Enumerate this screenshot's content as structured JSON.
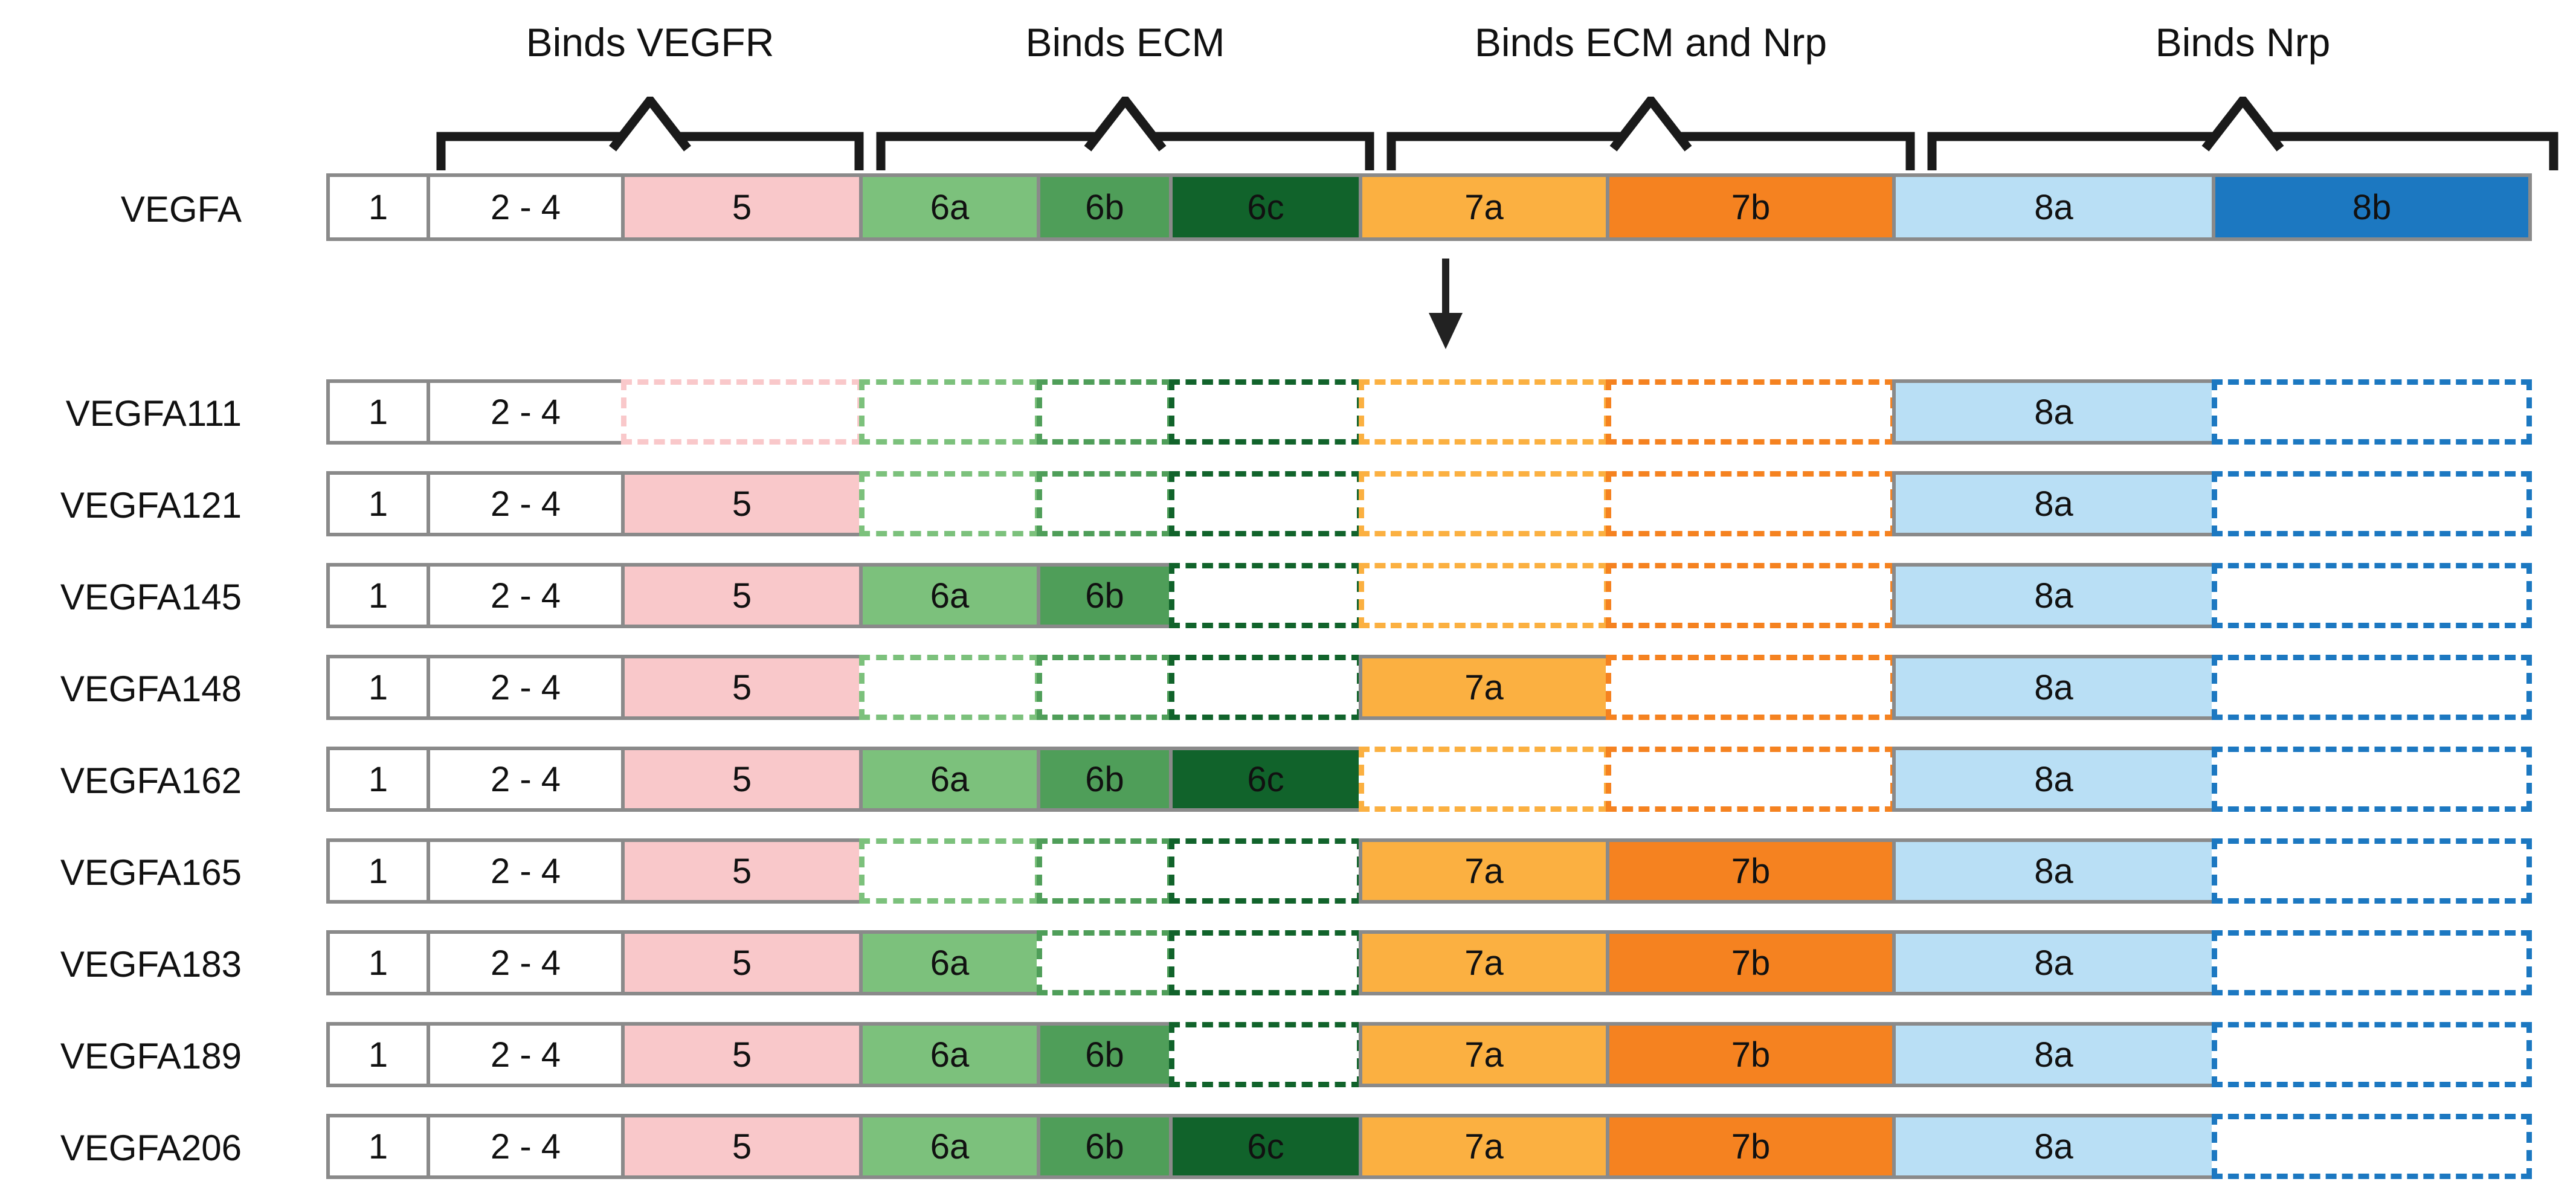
{
  "figure": {
    "description": "VEGFA exon structure and splice isoforms diagram"
  },
  "gene": {
    "label": "VEGFA"
  },
  "groups": [
    {
      "id": "vegfr",
      "label": "Binds VEGFR",
      "start": "e24",
      "end": "e5"
    },
    {
      "id": "ecm",
      "label": "Binds ECM",
      "start": "e6a",
      "end": "e6c"
    },
    {
      "id": "ecm_nrp",
      "label": "Binds ECM and Nrp",
      "start": "e7a",
      "end": "e7b"
    },
    {
      "id": "nrp",
      "label": "Binds Nrp",
      "start": "e8a",
      "end": "e8b"
    }
  ],
  "exons": [
    {
      "id": "e1",
      "label": "1",
      "color": "#ffffff"
    },
    {
      "id": "e24",
      "label": "2 - 4",
      "color": "#ffffff"
    },
    {
      "id": "e5",
      "label": "5",
      "color": "#f9c8ca"
    },
    {
      "id": "e6a",
      "label": "6a",
      "color": "#7cc17c"
    },
    {
      "id": "e6b",
      "label": "6b",
      "color": "#4f9e59"
    },
    {
      "id": "e6c",
      "label": "6c",
      "color": "#11632b"
    },
    {
      "id": "e7a",
      "label": "7a",
      "color": "#fbb041"
    },
    {
      "id": "e7b",
      "label": "7b",
      "color": "#f58220"
    },
    {
      "id": "e8a",
      "label": "8a",
      "color": "#b9dff5"
    },
    {
      "id": "e8b",
      "label": "8b",
      "color": "#1c78c1"
    }
  ],
  "border_color": "#8a8a8a",
  "bracket_color": "#1a1a1a",
  "isoforms": [
    {
      "name": "VEGFA111",
      "present": [
        "e1",
        "e24",
        "e8a"
      ]
    },
    {
      "name": "VEGFA121",
      "present": [
        "e1",
        "e24",
        "e5",
        "e8a"
      ]
    },
    {
      "name": "VEGFA145",
      "present": [
        "e1",
        "e24",
        "e5",
        "e6a",
        "e6b",
        "e8a"
      ]
    },
    {
      "name": "VEGFA148",
      "present": [
        "e1",
        "e24",
        "e5",
        "e7a",
        "e8a"
      ]
    },
    {
      "name": "VEGFA162",
      "present": [
        "e1",
        "e24",
        "e5",
        "e6a",
        "e6b",
        "e6c",
        "e8a"
      ]
    },
    {
      "name": "VEGFA165",
      "present": [
        "e1",
        "e24",
        "e5",
        "e7a",
        "e7b",
        "e8a"
      ]
    },
    {
      "name": "VEGFA183",
      "present": [
        "e1",
        "e24",
        "e5",
        "e6a",
        "e7a",
        "e7b",
        "e8a"
      ]
    },
    {
      "name": "VEGFA189",
      "present": [
        "e1",
        "e24",
        "e5",
        "e6a",
        "e6b",
        "e7a",
        "e7b",
        "e8a"
      ]
    },
    {
      "name": "VEGFA206",
      "present": [
        "e1",
        "e24",
        "e5",
        "e6a",
        "e6b",
        "e6c",
        "e7a",
        "e7b",
        "e8a"
      ]
    }
  ]
}
